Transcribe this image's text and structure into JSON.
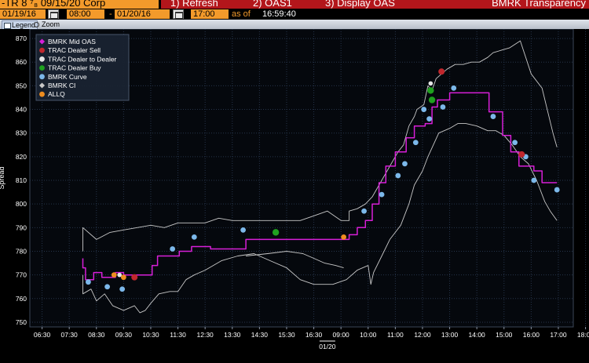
{
  "topbar": {
    "security": "-TR 8 ⁷₈ 09/15/20 Corp",
    "refresh": "1) Refresh",
    "oas1": "2) OAS1",
    "display_oas": "3) Display OAS",
    "transparency": "BMRK Transparency"
  },
  "datebar": {
    "start_date": "01/19/16",
    "start_time": "08:00",
    "dash": "-",
    "end_date": "01/20/16",
    "end_time": "17:00",
    "as_of_label": "as of",
    "as_of_time": "16:59:40"
  },
  "toolbar": {
    "legend": "Legend",
    "zoom": "Zoom"
  },
  "colors": {
    "mid": "#d81fd8",
    "ci": "#c8c8c8",
    "sell": "#c0272d",
    "dealer": "#e6e6e6",
    "buy": "#1fa11f",
    "curve": "#7cb8ea",
    "allq": "#ef8d1f",
    "grid": "#26344a",
    "axis_text": "#ffffff",
    "background": "#000000"
  },
  "chart_data": {
    "type": "line",
    "ylabel": "Spread",
    "ylim": [
      748,
      874
    ],
    "yticks": [
      750,
      760,
      770,
      780,
      790,
      800,
      810,
      820,
      830,
      840,
      850,
      860,
      870
    ],
    "xlim": [
      -0.45,
      19.55
    ],
    "xticks": [
      "06:30",
      "07:30",
      "08:30",
      "09:30",
      "10:30",
      "11:30",
      "12:30",
      "13:30",
      "14:30",
      "15:30",
      "16:30",
      "09:00",
      "10:00",
      "11:00",
      "12:00",
      "13:00",
      "14:00",
      "15:00",
      "16:00",
      "17:00",
      "18:00"
    ],
    "x_date_label": "01/20",
    "legend_entries": [
      {
        "label": "BMRK Mid OAS",
        "marker": "diamond",
        "color": "#d81fd8"
      },
      {
        "label": "TRAC Dealer Sell",
        "marker": "circle",
        "color": "#c0272d"
      },
      {
        "label": "TRAC Dealer to Dealer",
        "marker": "circle",
        "color": "#e6e6e6"
      },
      {
        "label": "TRAC Dealer Buy",
        "marker": "circle",
        "color": "#1fa11f"
      },
      {
        "label": "BMRK Curve",
        "marker": "circle",
        "color": "#7cb8ea"
      },
      {
        "label": "BMRK CI",
        "marker": "diamond",
        "color": "#c8c8c8"
      },
      {
        "label": "ALLQ",
        "marker": "circle",
        "color": "#ef8d1f"
      }
    ],
    "legend_position": "top-left",
    "grid": true,
    "series": [
      {
        "name": "BMRK Mid OAS",
        "role": "mid",
        "x": [
          1.5,
          1.5,
          1.6,
          1.6,
          1.9,
          1.9,
          2.2,
          2.2,
          2.7,
          2.7,
          3.0,
          3.0,
          4.05,
          4.05,
          4.25,
          4.25,
          5.05,
          5.05,
          5.5,
          5.5,
          6.2,
          6.2,
          7.5,
          7.5,
          11.3,
          11.3,
          11.6,
          11.6,
          11.9,
          11.9,
          12.15,
          12.15,
          12.4,
          12.4,
          12.65,
          12.65,
          13.0,
          13.0,
          13.4,
          13.4,
          13.7,
          13.7,
          14.1,
          14.1,
          14.35,
          14.35,
          14.55,
          14.55,
          15.0,
          15.0,
          15.9,
          15.9,
          16.45,
          16.45,
          16.95,
          16.95,
          17.25,
          17.25,
          17.55,
          17.55,
          18.1,
          18.1,
          18.4,
          18.4,
          18.95
        ],
        "y": [
          777,
          773,
          773,
          768,
          768,
          771,
          771,
          769,
          769,
          771,
          771,
          770,
          770,
          774,
          774,
          778,
          778,
          780,
          780,
          782,
          782,
          781,
          781,
          785,
          785,
          787,
          787,
          790,
          790,
          793,
          793,
          800,
          800,
          809,
          809,
          816,
          816,
          822,
          822,
          828,
          828,
          833,
          833,
          834,
          834,
          841,
          841,
          844,
          844,
          847,
          847,
          847,
          847,
          839,
          839,
          829,
          829,
          822,
          822,
          816,
          816,
          814,
          814,
          809,
          809
        ]
      },
      {
        "name": "BMRK CI",
        "role": "ci_upper",
        "x": [
          1.5,
          1.5,
          2.0,
          2.5,
          3.0,
          3.5,
          4.0,
          4.5,
          5.0,
          5.5,
          6.0,
          6.5,
          7.0,
          7.5,
          8.0,
          8.5,
          9.0,
          9.5,
          10.0,
          10.5,
          11.0,
          11.3,
          11.3,
          11.6,
          11.9,
          12.15,
          12.5,
          12.8,
          13.1,
          13.3,
          13.5,
          13.7,
          13.8,
          14.05,
          14.2,
          14.35,
          14.5,
          14.9,
          15.2,
          15.5,
          15.8,
          16.1,
          16.4,
          16.6,
          16.9,
          17.2,
          17.6,
          18.0,
          18.4,
          18.8,
          18.95
        ],
        "y": [
          780,
          790,
          785,
          788,
          789,
          790,
          791,
          790,
          792,
          792,
          792,
          794,
          793,
          793,
          793,
          793,
          793,
          793,
          795,
          797,
          793,
          793,
          797,
          798,
          800,
          803,
          810,
          816,
          822,
          825,
          833,
          837,
          840,
          842,
          850,
          848,
          853,
          857,
          859,
          859,
          860,
          860,
          862,
          864,
          865,
          866,
          869,
          855,
          849,
          830,
          824
        ]
      },
      {
        "name": "BMRK CI",
        "role": "ci_lower",
        "x": [
          1.5,
          1.5,
          1.8,
          2.0,
          2.3,
          2.6,
          3.0,
          3.4,
          3.6,
          3.8,
          4.0,
          4.3,
          4.7,
          5.0,
          5.3,
          5.6,
          6.0,
          6.6,
          7.2,
          7.8,
          8.4,
          9.0,
          9.5,
          10.0,
          10.4,
          10.7,
          11.2,
          11.6,
          12.0,
          12.1,
          12.2,
          12.5,
          12.8,
          13.2,
          13.5,
          13.7,
          14.0,
          14.2,
          14.4,
          14.6,
          15.0,
          15.3,
          15.6,
          16.0,
          16.4,
          16.7,
          17.0,
          17.3,
          17.6,
          17.9,
          18.2,
          18.5,
          18.7,
          18.95
        ],
        "y": [
          770,
          762,
          764,
          759,
          762,
          757,
          755,
          757,
          754,
          755,
          758,
          762,
          763,
          763,
          768,
          770,
          772,
          776,
          778,
          779,
          776,
          773,
          768,
          766,
          766,
          766,
          768,
          772,
          774,
          766,
          771,
          778,
          785,
          791,
          800,
          808,
          814,
          820,
          825,
          830,
          832,
          834,
          834,
          833,
          831,
          831,
          829,
          825,
          820,
          817,
          810,
          801,
          797,
          793
        ]
      },
      {
        "name": "BMRK CI",
        "role": "ci_fragment",
        "x": [
          7.5,
          8.3,
          9.0,
          9.6,
          10.0,
          10.4,
          10.8,
          11.1
        ],
        "y": [
          778,
          779,
          780,
          779,
          777,
          775,
          774,
          773
        ]
      }
    ],
    "markers": [
      {
        "series": "BMRK Curve",
        "x": [
          1.7,
          2.4,
          2.95,
          4.8,
          5.6,
          7.4,
          11.85,
          12.5,
          13.1,
          13.35,
          13.75,
          14.05,
          14.25,
          14.75,
          15.15,
          16.6,
          17.4,
          17.8,
          18.1,
          18.95
        ],
        "y": [
          767,
          765,
          764,
          781,
          786,
          789,
          797,
          804,
          812,
          817,
          826,
          840,
          836,
          841,
          849,
          837,
          826,
          820,
          810,
          806
        ]
      },
      {
        "series": "ALLQ",
        "x": [
          2.65,
          3.0,
          11.1
        ],
        "y": [
          770,
          769,
          786
        ]
      },
      {
        "series": "TRAC Dealer Sell",
        "x": [
          3.4,
          14.7,
          17.65
        ],
        "y": [
          769,
          856,
          821
        ]
      },
      {
        "series": "TRAC Dealer Buy",
        "x": [
          8.6,
          14.35,
          14.3
        ],
        "y": [
          788,
          844,
          848
        ]
      },
      {
        "series": "TRAC Dealer to Dealer",
        "x": [
          2.85,
          14.3
        ],
        "y": [
          770,
          851
        ]
      }
    ]
  }
}
